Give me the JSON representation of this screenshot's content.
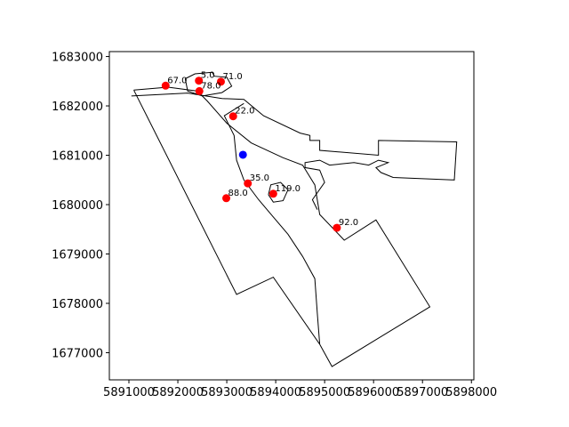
{
  "chart_data": {
    "type": "scatter",
    "title": "",
    "xlabel": "",
    "ylabel": "",
    "xlim": [
      5890600,
      5898050
    ],
    "ylim": [
      1676450,
      1683100
    ],
    "grid": false,
    "x_ticks": [
      5891000,
      5892000,
      5893000,
      5894000,
      5895000,
      5896000,
      5897000,
      5898000
    ],
    "x_tick_labels": [
      "5891000",
      "5892000",
      "5893000",
      "5894000",
      "5895000",
      "5896000",
      "5897000",
      "5898000"
    ],
    "y_ticks": [
      1677000,
      1678000,
      1679000,
      1680000,
      1681000,
      1682000,
      1683000
    ],
    "y_tick_labels": [
      "1677000",
      "1678000",
      "1679000",
      "1680000",
      "1681000",
      "1682000",
      "1683000"
    ],
    "colors": {
      "points": "#ff0000",
      "reference": "#0000ff",
      "boundary": "#000000"
    },
    "points": [
      {
        "x": 5891750,
        "y": 1682410,
        "label": "67.0"
      },
      {
        "x": 5892430,
        "y": 1682510,
        "label": "5.0"
      },
      {
        "x": 5892440,
        "y": 1682300,
        "label": "78.0"
      },
      {
        "x": 5892880,
        "y": 1682490,
        "label": "71.0"
      },
      {
        "x": 5893130,
        "y": 1681790,
        "label": "22.0"
      },
      {
        "x": 5893430,
        "y": 1680430,
        "label": "35.0"
      },
      {
        "x": 5892990,
        "y": 1680130,
        "label": "88.0"
      },
      {
        "x": 5893950,
        "y": 1680220,
        "label": "119.0"
      },
      {
        "x": 5895250,
        "y": 1679530,
        "label": "92.0"
      }
    ],
    "reference_point": {
      "x": 5893330,
      "y": 1681010
    },
    "boundaries": [
      [
        [
          5891100,
          1682320
        ],
        [
          5893200,
          1678180
        ],
        [
          5893950,
          1678530
        ],
        [
          5894900,
          1677170
        ],
        [
          5895150,
          1676720
        ],
        [
          5897150,
          1677930
        ],
        [
          5896050,
          1679690
        ],
        [
          5895400,
          1679280
        ],
        [
          5894900,
          1679800
        ],
        [
          5894800,
          1680400
        ],
        [
          5894550,
          1680800
        ],
        [
          5894150,
          1680950
        ],
        [
          5893500,
          1681250
        ],
        [
          5893000,
          1681650
        ],
        [
          5892600,
          1682100
        ],
        [
          5892400,
          1682300
        ],
        [
          5891800,
          1682380
        ],
        [
          5891100,
          1682320
        ]
      ],
      [
        [
          5891050,
          1682200
        ],
        [
          5892200,
          1682260
        ],
        [
          5892900,
          1682150
        ],
        [
          5893350,
          1682130
        ],
        [
          5893750,
          1681800
        ],
        [
          5894500,
          1681450
        ],
        [
          5894700,
          1681400
        ],
        [
          5894700,
          1681300
        ],
        [
          5894900,
          1681300
        ],
        [
          5894900,
          1681100
        ],
        [
          5896100,
          1681000
        ],
        [
          5896100,
          1681300
        ],
        [
          5897700,
          1681270
        ],
        [
          5897650,
          1680500
        ],
        [
          5896400,
          1680550
        ],
        [
          5896150,
          1680650
        ],
        [
          5896050,
          1680750
        ],
        [
          5896300,
          1680850
        ],
        [
          5896100,
          1680900
        ],
        [
          5895900,
          1680800
        ],
        [
          5895600,
          1680850
        ],
        [
          5895100,
          1680800
        ],
        [
          5894900,
          1680900
        ],
        [
          5894600,
          1680850
        ],
        [
          5894600,
          1680750
        ],
        [
          5894900,
          1680700
        ],
        [
          5895000,
          1680450
        ],
        [
          5894750,
          1680100
        ],
        [
          5894850,
          1679900
        ]
      ],
      [
        [
          5892150,
          1682550
        ],
        [
          5892350,
          1682650
        ],
        [
          5892700,
          1682680
        ],
        [
          5892750,
          1682600
        ],
        [
          5893000,
          1682580
        ],
        [
          5893100,
          1682400
        ],
        [
          5892900,
          1682270
        ],
        [
          5892500,
          1682200
        ],
        [
          5892200,
          1682300
        ],
        [
          5892150,
          1682550
        ]
      ],
      [
        [
          5893850,
          1680200
        ],
        [
          5893900,
          1680400
        ],
        [
          5894100,
          1680450
        ],
        [
          5894250,
          1680300
        ],
        [
          5894150,
          1680080
        ],
        [
          5893950,
          1680050
        ],
        [
          5893850,
          1680200
        ]
      ],
      [
        [
          5893350,
          1682050
        ],
        [
          5892950,
          1681800
        ],
        [
          5893050,
          1681600
        ],
        [
          5893150,
          1681400
        ],
        [
          5893200,
          1680900
        ],
        [
          5893350,
          1680500
        ],
        [
          5893650,
          1680100
        ],
        [
          5893950,
          1679750
        ],
        [
          5894250,
          1679400
        ],
        [
          5894550,
          1678950
        ],
        [
          5894800,
          1678500
        ],
        [
          5894850,
          1677800
        ],
        [
          5894900,
          1677170
        ]
      ]
    ]
  }
}
